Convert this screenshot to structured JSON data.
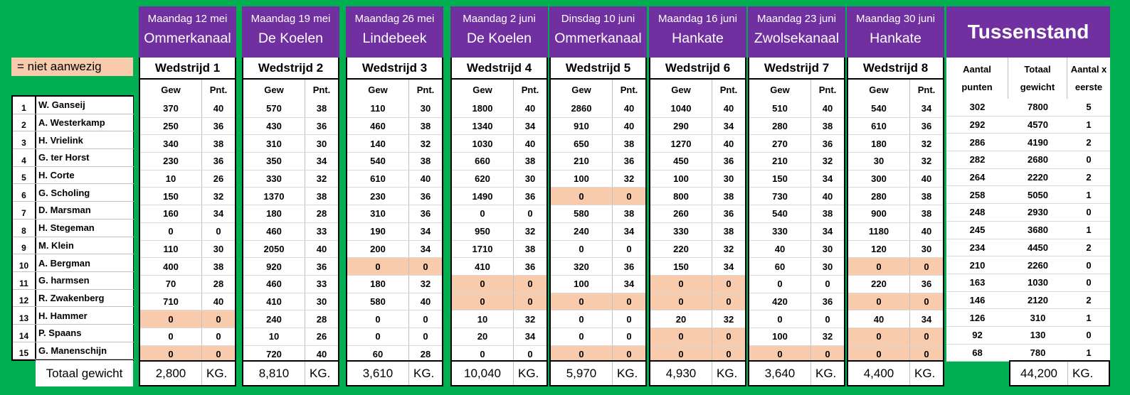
{
  "legend_label": "= niet aanwezig",
  "colors": {
    "background": "#00b050",
    "header": "#7030a0",
    "absent": "#f8cbad"
  },
  "participants": [
    {
      "nr": "1",
      "name": "W. Ganseij"
    },
    {
      "nr": "2",
      "name": "A. Westerkamp"
    },
    {
      "nr": "3",
      "name": "H. Vrielink"
    },
    {
      "nr": "4",
      "name": "G. ter Horst"
    },
    {
      "nr": "5",
      "name": "H. Corte"
    },
    {
      "nr": "6",
      "name": "G. Scholing"
    },
    {
      "nr": "7",
      "name": "D. Marsman"
    },
    {
      "nr": "8",
      "name": "H. Stegeman"
    },
    {
      "nr": "9",
      "name": "M. Klein"
    },
    {
      "nr": "10",
      "name": "A. Bergman"
    },
    {
      "nr": "11",
      "name": "G. harmsen"
    },
    {
      "nr": "12",
      "name": "R. Zwakenberg"
    },
    {
      "nr": "13",
      "name": "H. Hammer"
    },
    {
      "nr": "14",
      "name": "P. Spaans"
    },
    {
      "nr": "15",
      "name": "G. Manenschijn"
    }
  ],
  "total_label": "Totaal gewicht",
  "col_gew": "Gew",
  "col_pnt": "Pnt.",
  "unit": "KG.",
  "matches": [
    {
      "date": "Maandag 12 mei",
      "location": "Ommerkanaal",
      "title": "Wedstrijd 1",
      "total": "2,800",
      "rows": [
        [
          "370",
          "40"
        ],
        [
          "250",
          "36"
        ],
        [
          "340",
          "38"
        ],
        [
          "230",
          "36"
        ],
        [
          "10",
          "26"
        ],
        [
          "150",
          "32"
        ],
        [
          "160",
          "34"
        ],
        [
          "0",
          "0"
        ],
        [
          "110",
          "30"
        ],
        [
          "400",
          "38"
        ],
        [
          "70",
          "28"
        ],
        [
          "710",
          "40"
        ],
        [
          "0",
          "0"
        ],
        [
          "0",
          "0"
        ],
        [
          "0",
          "0"
        ]
      ],
      "absent": [
        12,
        14
      ]
    },
    {
      "date": "Maandag 19 mei",
      "location": "De Koelen",
      "title": "Wedstrijd 2",
      "total": "8,810",
      "rows": [
        [
          "570",
          "38"
        ],
        [
          "430",
          "36"
        ],
        [
          "310",
          "30"
        ],
        [
          "350",
          "34"
        ],
        [
          "330",
          "32"
        ],
        [
          "1370",
          "38"
        ],
        [
          "180",
          "28"
        ],
        [
          "460",
          "33"
        ],
        [
          "2050",
          "40"
        ],
        [
          "920",
          "36"
        ],
        [
          "460",
          "33"
        ],
        [
          "410",
          "30"
        ],
        [
          "240",
          "28"
        ],
        [
          "10",
          "26"
        ],
        [
          "720",
          "40"
        ]
      ],
      "absent": []
    },
    {
      "date": "Maandag 26 mei",
      "location": "Lindebeek",
      "title": "Wedstrijd 3",
      "total": "3,610",
      "rows": [
        [
          "110",
          "30"
        ],
        [
          "460",
          "38"
        ],
        [
          "140",
          "32"
        ],
        [
          "540",
          "38"
        ],
        [
          "610",
          "40"
        ],
        [
          "230",
          "36"
        ],
        [
          "310",
          "36"
        ],
        [
          "190",
          "34"
        ],
        [
          "200",
          "34"
        ],
        [
          "0",
          "0"
        ],
        [
          "180",
          "32"
        ],
        [
          "580",
          "40"
        ],
        [
          "0",
          "0"
        ],
        [
          "0",
          "0"
        ],
        [
          "60",
          "28"
        ]
      ],
      "absent": [
        9
      ]
    },
    {
      "date": "Maandag 2 juni",
      "location": "De Koelen",
      "title": "Wedstrijd 4",
      "total": "10,040",
      "rows": [
        [
          "1800",
          "40"
        ],
        [
          "1340",
          "34"
        ],
        [
          "1030",
          "40"
        ],
        [
          "660",
          "38"
        ],
        [
          "620",
          "30"
        ],
        [
          "1490",
          "36"
        ],
        [
          "0",
          "0"
        ],
        [
          "950",
          "32"
        ],
        [
          "1710",
          "38"
        ],
        [
          "410",
          "36"
        ],
        [
          "0",
          "0"
        ],
        [
          "0",
          "0"
        ],
        [
          "10",
          "32"
        ],
        [
          "20",
          "34"
        ],
        [
          "0",
          "0"
        ]
      ],
      "absent": [
        10,
        11
      ]
    },
    {
      "date": "Dinsdag 10 juni",
      "location": "Ommerkanaal",
      "title": "Wedstrijd 5",
      "total": "5,970",
      "rows": [
        [
          "2860",
          "40"
        ],
        [
          "910",
          "40"
        ],
        [
          "650",
          "38"
        ],
        [
          "210",
          "36"
        ],
        [
          "100",
          "32"
        ],
        [
          "0",
          "0"
        ],
        [
          "580",
          "38"
        ],
        [
          "240",
          "34"
        ],
        [
          "0",
          "0"
        ],
        [
          "320",
          "36"
        ],
        [
          "100",
          "34"
        ],
        [
          "0",
          "0"
        ],
        [
          "0",
          "0"
        ],
        [
          "0",
          "0"
        ],
        [
          "0",
          "0"
        ]
      ],
      "absent": [
        5,
        11,
        14
      ]
    },
    {
      "date": "Maandag 16 juni",
      "location": "Hankate",
      "title": "Wedstrijd 6",
      "total": "4,930",
      "rows": [
        [
          "1040",
          "40"
        ],
        [
          "290",
          "34"
        ],
        [
          "1270",
          "40"
        ],
        [
          "450",
          "36"
        ],
        [
          "100",
          "30"
        ],
        [
          "800",
          "38"
        ],
        [
          "260",
          "36"
        ],
        [
          "330",
          "38"
        ],
        [
          "220",
          "32"
        ],
        [
          "150",
          "34"
        ],
        [
          "0",
          "0"
        ],
        [
          "0",
          "0"
        ],
        [
          "20",
          "32"
        ],
        [
          "0",
          "0"
        ],
        [
          "0",
          "0"
        ]
      ],
      "absent": [
        10,
        11,
        13,
        14
      ]
    },
    {
      "date": "Maandag 23 juni",
      "location": "Zwolsekanaal",
      "title": "Wedstrijd 7",
      "total": "3,640",
      "rows": [
        [
          "510",
          "40"
        ],
        [
          "280",
          "38"
        ],
        [
          "270",
          "36"
        ],
        [
          "210",
          "32"
        ],
        [
          "150",
          "34"
        ],
        [
          "730",
          "40"
        ],
        [
          "540",
          "38"
        ],
        [
          "330",
          "34"
        ],
        [
          "40",
          "30"
        ],
        [
          "60",
          "30"
        ],
        [
          "0",
          "0"
        ],
        [
          "420",
          "36"
        ],
        [
          "0",
          "0"
        ],
        [
          "100",
          "32"
        ],
        [
          "0",
          "0"
        ]
      ],
      "absent": [
        14
      ]
    },
    {
      "date": "Maandag 30 juni",
      "location": "Hankate",
      "title": "Wedstrijd 8",
      "total": "4,400",
      "rows": [
        [
          "540",
          "34"
        ],
        [
          "610",
          "36"
        ],
        [
          "180",
          "32"
        ],
        [
          "30",
          "32"
        ],
        [
          "300",
          "40"
        ],
        [
          "280",
          "38"
        ],
        [
          "900",
          "38"
        ],
        [
          "1180",
          "40"
        ],
        [
          "120",
          "30"
        ],
        [
          "0",
          "0"
        ],
        [
          "220",
          "36"
        ],
        [
          "0",
          "0"
        ],
        [
          "40",
          "34"
        ],
        [
          "0",
          "0"
        ],
        [
          "0",
          "0"
        ]
      ],
      "absent": [
        9,
        11,
        13,
        14
      ]
    }
  ],
  "standing": {
    "title": "Tussenstand",
    "col1_a": "Aantal",
    "col1_b": "punten",
    "col2_a": "Totaal",
    "col2_b": "gewicht",
    "col3_a": "Aantal x",
    "col3_b": "eerste",
    "rows": [
      [
        "302",
        "7800",
        "5"
      ],
      [
        "292",
        "4570",
        "1"
      ],
      [
        "286",
        "4190",
        "2"
      ],
      [
        "282",
        "2680",
        "0"
      ],
      [
        "264",
        "2220",
        "2"
      ],
      [
        "258",
        "5050",
        "1"
      ],
      [
        "248",
        "2930",
        "0"
      ],
      [
        "245",
        "3680",
        "1"
      ],
      [
        "234",
        "4450",
        "2"
      ],
      [
        "210",
        "2260",
        "0"
      ],
      [
        "163",
        "1030",
        "0"
      ],
      [
        "146",
        "2120",
        "2"
      ],
      [
        "126",
        "310",
        "1"
      ],
      [
        "92",
        "130",
        "0"
      ],
      [
        "68",
        "780",
        "1"
      ]
    ],
    "total": "44,200"
  }
}
